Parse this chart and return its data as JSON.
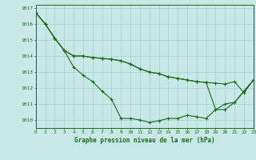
{
  "title": "Graphe pression niveau de la mer (hPa)",
  "background_color": "#c8e8e8",
  "grid_color": "#b0d4d4",
  "line_color": "#1a6b1a",
  "x_min": 0,
  "x_max": 23,
  "y_min": 1009.5,
  "y_max": 1017.2,
  "yticks": [
    1010,
    1011,
    1012,
    1013,
    1014,
    1015,
    1016,
    1017
  ],
  "xticks": [
    0,
    1,
    2,
    3,
    4,
    5,
    6,
    7,
    8,
    9,
    10,
    11,
    12,
    13,
    14,
    15,
    16,
    17,
    18,
    19,
    20,
    21,
    22,
    23
  ],
  "series": [
    [
      1016.7,
      1016.0,
      1015.1,
      1014.35,
      1013.3,
      1012.8,
      1012.4,
      1011.8,
      1011.3,
      1010.1,
      1010.1,
      1010.0,
      1009.85,
      1009.95,
      1010.1,
      1010.1,
      1010.3,
      1010.2,
      1010.1,
      1010.65,
      1011.0,
      1011.1,
      1011.8,
      1012.5
    ],
    [
      1016.7,
      1016.0,
      1015.1,
      1014.35,
      1014.0,
      1014.0,
      1013.9,
      1013.85,
      1013.8,
      1013.7,
      1013.5,
      1013.2,
      1013.0,
      1012.9,
      1012.7,
      1012.6,
      1012.5,
      1012.4,
      1012.35,
      1010.65,
      1010.65,
      1011.1,
      1011.8,
      1012.5
    ],
    [
      1016.7,
      1016.0,
      1015.1,
      1014.35,
      1014.0,
      1014.0,
      1013.9,
      1013.85,
      1013.8,
      1013.7,
      1013.5,
      1013.2,
      1013.0,
      1012.9,
      1012.7,
      1012.6,
      1012.5,
      1012.4,
      1012.35,
      1012.3,
      1012.25,
      1012.4,
      1011.7,
      1012.5
    ]
  ]
}
